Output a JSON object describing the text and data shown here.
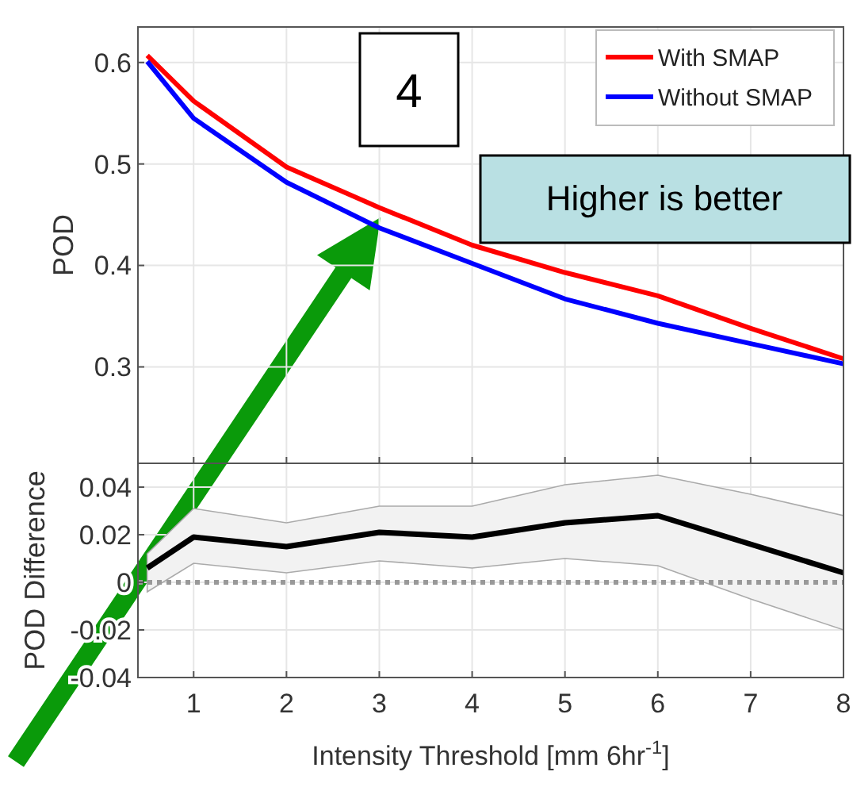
{
  "chart_data": [
    {
      "type": "line",
      "ylabel": "POD",
      "annotations": [
        "4",
        "Higher is better"
      ],
      "x": [
        0.5,
        1,
        2,
        3,
        4,
        5,
        6,
        7,
        8
      ],
      "xlim": [
        0.4,
        8
      ],
      "xticks": [
        1,
        2,
        3,
        4,
        5,
        6,
        7,
        8
      ],
      "ylim": [
        0.205,
        0.635
      ],
      "yticks": [
        0.3,
        0.4,
        0.5,
        0.6
      ],
      "grid": true,
      "legend": "top right",
      "tick_labels": "y",
      "series": [
        {
          "name": "With SMAP",
          "color": "#ff0000",
          "values": [
            0.607,
            0.562,
            0.497,
            0.457,
            0.42,
            0.393,
            0.37,
            0.338,
            0.308
          ]
        },
        {
          "name": "Without SMAP",
          "color": "#0000ff",
          "values": [
            0.601,
            0.545,
            0.482,
            0.437,
            0.402,
            0.367,
            0.343,
            0.323,
            0.303
          ]
        }
      ]
    },
    {
      "type": "line",
      "ylabel": "POD Difference",
      "xlabel": "Intensity Threshold [mm 6hr$^{-1}$]",
      "x": [
        0.5,
        1,
        2,
        3,
        4,
        5,
        6,
        7,
        8
      ],
      "xlim": [
        0.4,
        8
      ],
      "xticks": [
        1,
        2,
        3,
        4,
        5,
        6,
        7,
        8
      ],
      "ylim": [
        -0.04,
        0.05
      ],
      "yticks": [
        -0.04,
        -0.02,
        0,
        0.02,
        0.04
      ],
      "grid": true,
      "ref_lines": [
        {
          "axis": "y",
          "value": 0,
          "color": "#999999",
          "line_style": "dotted"
        }
      ],
      "series": [
        {
          "color": "#000000",
          "values": [
            0.006,
            0.019,
            0.015,
            0.021,
            0.019,
            0.025,
            0.028,
            0.016,
            0.004
          ],
          "lower": [
            -0.004,
            0.008,
            0.004,
            0.009,
            0.006,
            0.01,
            0.007,
            -0.007,
            -0.02
          ],
          "upper": [
            0.012,
            0.031,
            0.025,
            0.032,
            0.032,
            0.041,
            0.045,
            0.037,
            0.028
          ]
        }
      ]
    }
  ]
}
